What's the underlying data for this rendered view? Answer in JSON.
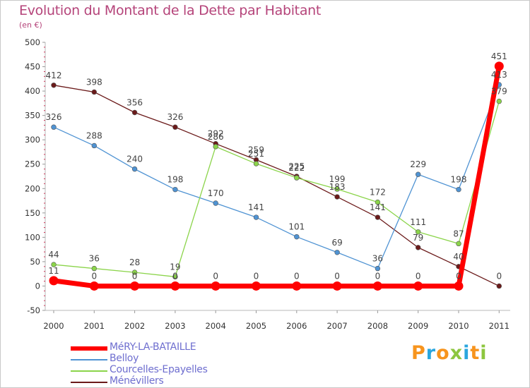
{
  "title": "Evolution du Montant de la Dette par Habitant",
  "unit": "(en €)",
  "logo": "Proxiti",
  "logo_colors": [
    "#f7941d",
    "#2aa6de",
    "#f7941d",
    "#8dc63f",
    "#2aa6de",
    "#f7941d",
    "#8dc63f"
  ],
  "chart_data": {
    "type": "line",
    "x": [
      "2000",
      "2001",
      "2002",
      "2003",
      "2004",
      "2005",
      "2006",
      "2007",
      "2008",
      "2009",
      "2010",
      "2011"
    ],
    "ylim": [
      -50,
      500
    ],
    "yticks": [
      -50,
      0,
      50,
      100,
      150,
      200,
      250,
      300,
      350,
      400,
      450,
      500
    ],
    "grid": false,
    "legend_position": "bottom-left",
    "series": [
      {
        "name": "MéRY-LA-BATAILLE",
        "color": "#ff0000",
        "values": [
          11,
          0,
          0,
          0,
          0,
          0,
          0,
          0,
          0,
          0,
          0,
          451
        ],
        "labels": [
          "11",
          "0",
          "0",
          "0",
          "0",
          "0",
          "0",
          "0",
          "0",
          "0",
          "0",
          "451"
        ]
      },
      {
        "name": "Belloy",
        "color": "#4f93d3",
        "values": [
          326,
          288,
          240,
          198,
          170,
          141,
          101,
          69,
          36,
          229,
          198,
          413
        ],
        "labels": [
          "326",
          "288",
          "240",
          "198",
          "170",
          "141",
          "101",
          "69",
          "36",
          "229",
          "198",
          "413"
        ]
      },
      {
        "name": "Courcelles-Epayelles",
        "color": "#8bd44a",
        "values": [
          44,
          36,
          28,
          19,
          286,
          251,
          222,
          199,
          172,
          111,
          87,
          379
        ],
        "labels": [
          "44",
          "36",
          "28",
          "19",
          "286",
          "251",
          "222",
          "199",
          "172",
          "111",
          "87",
          "379"
        ]
      },
      {
        "name": "Ménévillers",
        "color": "#6b1a1a",
        "values": [
          412,
          398,
          356,
          326,
          292,
          259,
          225,
          183,
          141,
          79,
          40,
          0
        ],
        "labels": [
          "412",
          "398",
          "356",
          "326",
          "292",
          "259",
          "225",
          "183",
          "141",
          "79",
          "40",
          "0"
        ]
      }
    ]
  }
}
